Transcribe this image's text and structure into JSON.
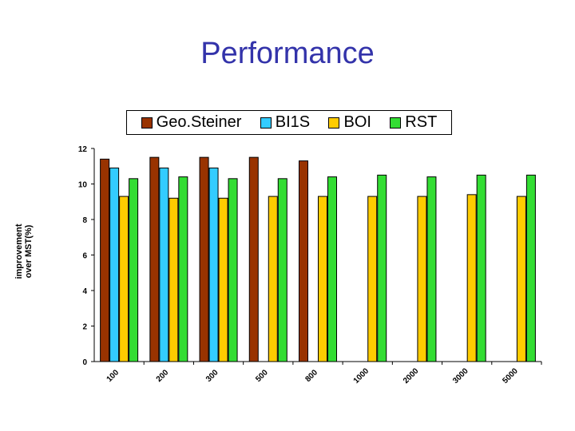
{
  "slide": {
    "title": "Performance"
  },
  "chart_data": {
    "type": "bar",
    "title": "",
    "xlabel": "",
    "ylabel_lines": [
      "improvement",
      "over MST(%)"
    ],
    "ylim": [
      0,
      12
    ],
    "yticks": [
      0,
      2,
      4,
      6,
      8,
      10,
      12
    ],
    "categories": [
      "100",
      "200",
      "300",
      "500",
      "800",
      "1000",
      "2000",
      "3000",
      "5000"
    ],
    "legend_position": "top",
    "grid": false,
    "series": [
      {
        "name": "Geo.Steiner",
        "color": "#993300",
        "values": [
          11.4,
          11.5,
          11.5,
          11.5,
          11.3,
          null,
          null,
          null,
          null
        ]
      },
      {
        "name": "BI1S",
        "color": "#33ccff",
        "values": [
          10.9,
          10.9,
          10.9,
          null,
          null,
          null,
          null,
          null,
          null
        ]
      },
      {
        "name": "BOI",
        "color": "#ffcc00",
        "values": [
          9.3,
          9.2,
          9.2,
          9.3,
          9.3,
          9.3,
          9.3,
          9.4,
          9.3
        ]
      },
      {
        "name": "RST",
        "color": "#33dd33",
        "values": [
          10.3,
          10.4,
          10.3,
          10.3,
          10.4,
          10.5,
          10.4,
          10.5,
          10.5
        ]
      }
    ]
  }
}
